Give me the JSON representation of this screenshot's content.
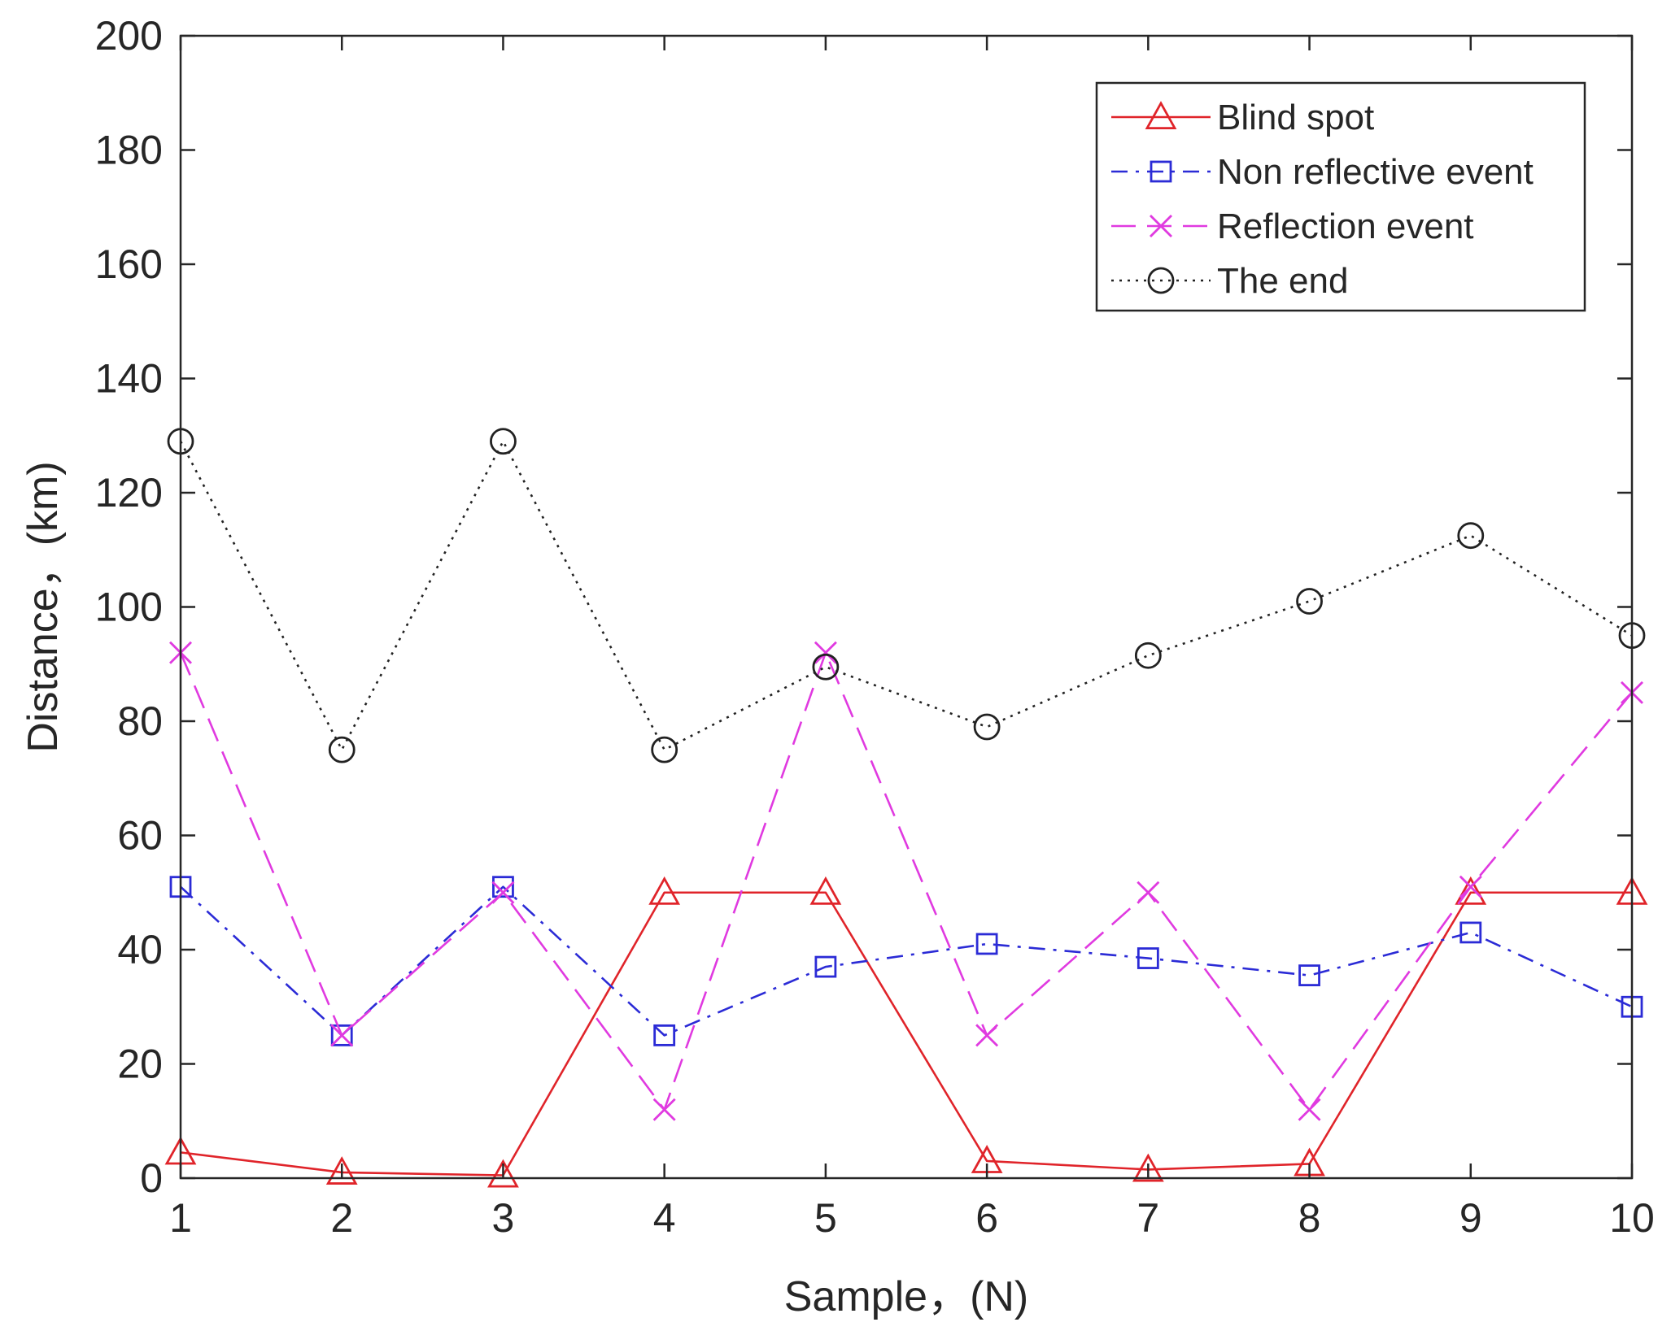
{
  "chart_data": {
    "type": "line",
    "title": "",
    "xlabel": "Sample，(N)",
    "ylabel": "Distance，(km)",
    "xlim": [
      1,
      10
    ],
    "ylim": [
      0,
      200
    ],
    "x": [
      1,
      2,
      3,
      4,
      5,
      6,
      7,
      8,
      9,
      10
    ],
    "x_ticks": [
      "1",
      "2",
      "3",
      "4",
      "5",
      "6",
      "7",
      "8",
      "9",
      "10"
    ],
    "y_ticks": [
      "0",
      "20",
      "40",
      "60",
      "80",
      "100",
      "120",
      "140",
      "160",
      "180",
      "200"
    ],
    "legend_position": "top-right",
    "grid": false,
    "series": [
      {
        "name": "Blind spot",
        "color": "#e0242a",
        "line_style": "solid",
        "marker": "triangle",
        "values": [
          4.5,
          1,
          0.5,
          50,
          50,
          3,
          1.5,
          2.5,
          50,
          50
        ]
      },
      {
        "name": "Non reflective event",
        "color": "#2b2bd6",
        "line_style": "dashdot",
        "marker": "square",
        "values": [
          51,
          25,
          51,
          25,
          37,
          41,
          38.5,
          35.5,
          43,
          30
        ]
      },
      {
        "name": "Reflection event",
        "color": "#e03ae0",
        "line_style": "dashed",
        "marker": "x",
        "values": [
          92,
          25,
          50,
          12,
          92,
          25,
          50,
          12,
          51,
          85
        ]
      },
      {
        "name": "The end",
        "color": "#222222",
        "line_style": "dotted",
        "marker": "circle",
        "values": [
          129,
          75,
          129,
          75,
          89.5,
          79,
          91.5,
          101,
          112.5,
          95
        ]
      }
    ]
  }
}
